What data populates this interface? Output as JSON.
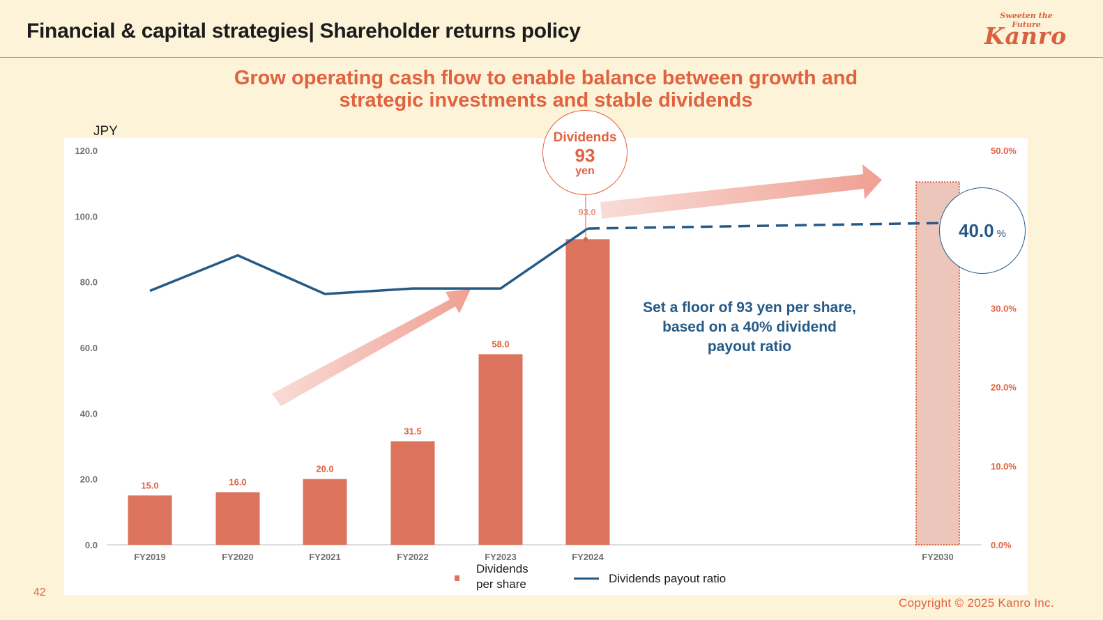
{
  "page": {
    "title": "Financial & capital strategies| Shareholder returns policy",
    "brand_tagline": "Sweeten the Future",
    "brand_logo": "Kanro",
    "headline_line1": "Grow operating cash flow to enable balance between growth and",
    "headline_line2": "strategic investments and stable dividends",
    "page_number": "42",
    "copyright": "Copyright © 2025  Kanro Inc.",
    "colors": {
      "accent": "#e0623f",
      "bar": "#dc735c",
      "bar_target": "#edc6bb",
      "line": "#255a87",
      "background": "#fcf3d9"
    }
  },
  "callouts": {
    "dividend_bubble": {
      "line1": "Dividends",
      "line2": "93",
      "line3": "yen"
    },
    "payout_bubble": {
      "value": "40.0",
      "unit": "%"
    },
    "note_lines": [
      "Set a floor of 93 yen per share,",
      "based on a 40% dividend",
      "payout ratio"
    ]
  },
  "chart_data": {
    "type": "bar",
    "title": "",
    "xlabel": "",
    "ylabel": "JPY",
    "y2label": "",
    "categories": [
      "FY2019",
      "FY2020",
      "FY2021",
      "FY2022",
      "FY2023",
      "FY2024",
      "FY2030"
    ],
    "ylim": [
      0,
      120
    ],
    "y_ticks": [
      "0.0",
      "20.0",
      "40.0",
      "60.0",
      "80.0",
      "100.0",
      "120.0"
    ],
    "y2lim": [
      0,
      50
    ],
    "y2_ticks": [
      "0.0%",
      "10.0%",
      "20.0%",
      "30.0%",
      "40.0%",
      "50.0%"
    ],
    "y2_ticks_visible": [
      "0.0%",
      "10.0%",
      "20.0%",
      "30.0%",
      "50.0%"
    ],
    "grid": false,
    "legend_position": "bottom",
    "series": [
      {
        "name": "Dividends per share",
        "type": "bar",
        "axis": "left",
        "values": [
          15.0,
          16.0,
          20.0,
          31.5,
          58.0,
          93.0,
          null
        ],
        "labels": [
          "15.0",
          "16.0",
          "20.0",
          "31.5",
          "58.0",
          "93.0",
          ""
        ],
        "target_bar": {
          "category": "FY2030",
          "value_pct_axis": 46,
          "style": "dotted-outline"
        }
      },
      {
        "name": "Dividends payout ratio",
        "type": "line",
        "axis": "right",
        "values": [
          32.2,
          36.7,
          31.8,
          32.5,
          32.5,
          40.1,
          null
        ],
        "projection": {
          "from": "FY2024",
          "to": "FY2030",
          "value": 40.0,
          "style": "dashed"
        }
      }
    ],
    "legend": [
      "Dividends per share",
      "Dividends payout ratio"
    ],
    "legend_bar_label_lines": [
      "Dividends",
      "per share"
    ]
  }
}
